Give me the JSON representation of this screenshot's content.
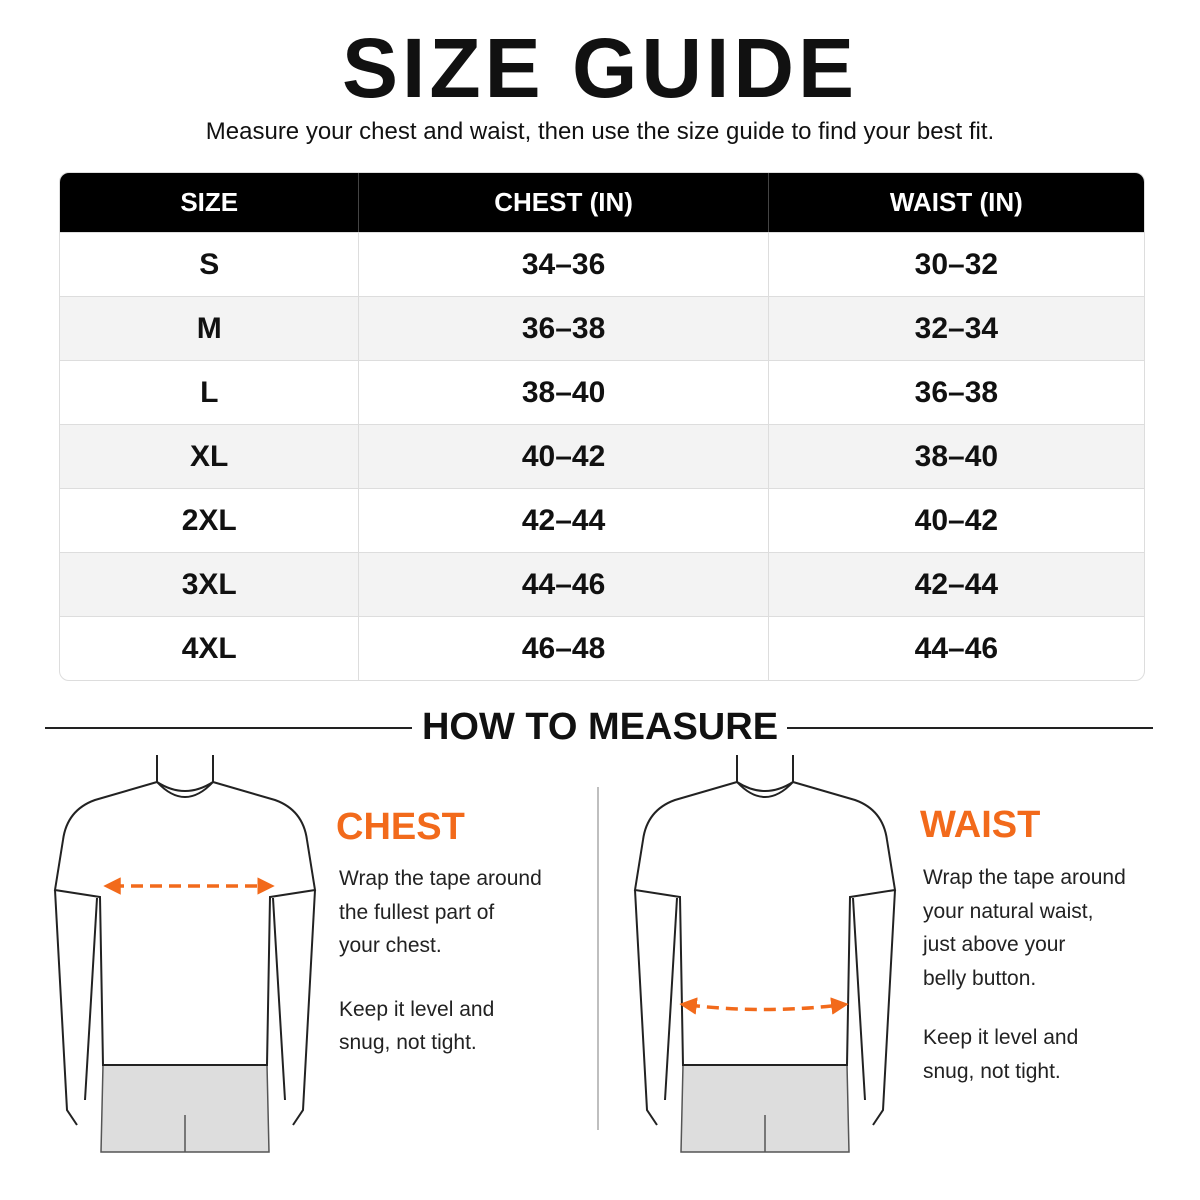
{
  "header": {
    "title": "SIZE GUIDE",
    "subtitle": "Measure your chest and waist, then use the size guide to find your best fit."
  },
  "table": {
    "columns": [
      "SIZE",
      "CHEST (IN)",
      "WAIST (IN)"
    ],
    "rows": [
      [
        "S",
        "34–36",
        "30–32"
      ],
      [
        "M",
        "36–38",
        "32–34"
      ],
      [
        "L",
        "38–40",
        "36–38"
      ],
      [
        "XL",
        "40–42",
        "38–40"
      ],
      [
        "2XL",
        "42–44",
        "40–42"
      ],
      [
        "3XL",
        "44–46",
        "42–44"
      ],
      [
        "4XL",
        "46–48",
        "44–46"
      ]
    ]
  },
  "how_to_measure": {
    "title": "HOW TO MEASURE",
    "sections": [
      {
        "title": "CHEST",
        "lines": [
          "Wrap the tape around",
          "the fullest part of",
          "your chest."
        ],
        "note_lines": [
          "Keep it level and",
          "snug, not tight."
        ]
      },
      {
        "title": "WAIST",
        "lines": [
          "Wrap the tape around",
          "your natural waist,",
          "just above your",
          "belly button."
        ],
        "note_lines": [
          "Keep it level and",
          "snug, not tight."
        ]
      }
    ]
  }
}
